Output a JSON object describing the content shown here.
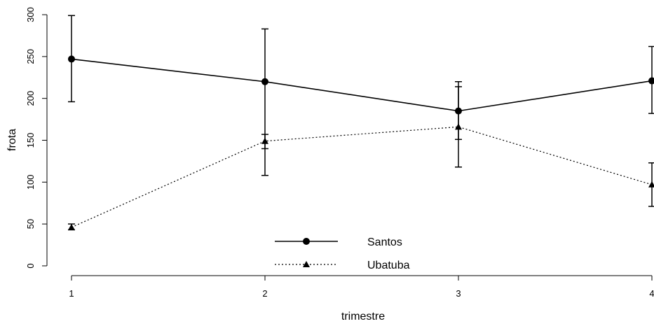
{
  "chart_data": {
    "type": "line",
    "xlabel": "trimestre",
    "ylabel": "frota",
    "x": [
      1,
      2,
      3,
      4
    ],
    "x_ticks": [
      "1",
      "2",
      "3",
      "4"
    ],
    "y_ticks": [
      "0",
      "50",
      "100",
      "150",
      "200",
      "250",
      "300"
    ],
    "ylim": [
      0,
      300
    ],
    "legend_position": "bottom-center",
    "series": [
      {
        "name": "Santos",
        "marker": "circle",
        "line_style": "solid",
        "values": [
          247,
          220,
          185,
          221
        ],
        "err_low": [
          196,
          108,
          118,
          182
        ],
        "err_high": [
          299,
          283,
          220,
          262
        ]
      },
      {
        "name": "Ubatuba",
        "marker": "triangle",
        "line_style": "dotted",
        "values": [
          46,
          149,
          166,
          97
        ],
        "err_low": [
          43,
          140,
          151,
          71
        ],
        "err_high": [
          50,
          157,
          214,
          123
        ]
      }
    ]
  }
}
